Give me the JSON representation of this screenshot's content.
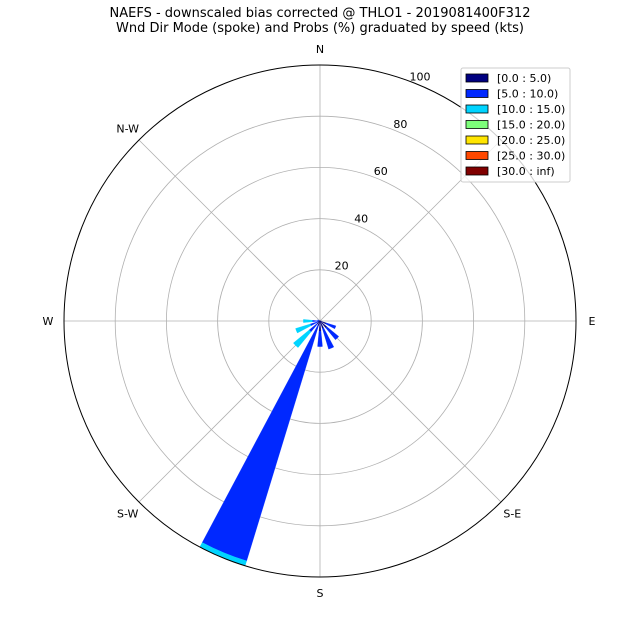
{
  "title": "NAEFS - downscaled bias corrected @ THLO1 - 2019081400F312",
  "subtitle": "Wnd Dir Mode (spoke) and Probs (%) graduated by speed (kts)",
  "chart_data": {
    "type": "windrose",
    "rlim": [
      0,
      100
    ],
    "radial_ticks": [
      "20",
      "40",
      "60",
      "80",
      "100"
    ],
    "radial_tick_values": [
      20,
      40,
      60,
      80,
      100
    ],
    "direction_labels": [
      "N",
      "N-W",
      "W",
      "S-W",
      "S",
      "S-E",
      "E"
    ],
    "direction_angles": [
      0,
      315,
      270,
      225,
      180,
      135,
      90
    ],
    "grid": true,
    "legend_position": "top-right",
    "speed_bins": [
      {
        "label": "[0.0 : 5.0)",
        "color": "#000080"
      },
      {
        "label": "[5.0 : 10.0)",
        "color": "#0028ff"
      },
      {
        "label": "[10.0 : 15.0)",
        "color": "#00d4ff"
      },
      {
        "label": "[15.0 : 20.0)",
        "color": "#7dff7a"
      },
      {
        "label": "[20.0 : 25.0)",
        "color": "#ffe500"
      },
      {
        "label": "[25.0 : 30.0)",
        "color": "#ff4800"
      },
      {
        "label": "[30.0 : inf)",
        "color": "#800000"
      }
    ],
    "sectors": [
      {
        "direction": 90,
        "values": [
          0.5,
          0,
          0,
          0,
          0,
          0,
          0
        ]
      },
      {
        "direction": 112.5,
        "values": [
          2.5,
          4,
          0,
          0,
          0,
          0,
          0
        ]
      },
      {
        "direction": 135,
        "values": [
          3.5,
          6,
          0,
          0,
          0,
          0,
          0
        ]
      },
      {
        "direction": 157.5,
        "values": [
          3,
          8.5,
          0,
          0,
          0,
          0,
          0
        ]
      },
      {
        "direction": 180,
        "values": [
          4,
          6,
          0,
          0,
          0,
          0,
          0
        ]
      },
      {
        "direction": 202.5,
        "values": [
          2,
          96,
          2,
          0,
          0,
          0,
          0
        ]
      },
      {
        "direction": 225,
        "values": [
          1.5,
          4,
          8,
          0,
          0,
          0,
          0
        ]
      },
      {
        "direction": 247.5,
        "values": [
          1,
          3,
          6,
          0,
          0,
          0,
          0
        ]
      },
      {
        "direction": 270,
        "values": [
          0.5,
          2.5,
          3.5,
          0,
          0,
          0,
          0
        ]
      },
      {
        "direction": 292.5,
        "values": [
          0.5,
          0.5,
          0,
          0,
          0,
          0,
          0
        ]
      }
    ]
  }
}
